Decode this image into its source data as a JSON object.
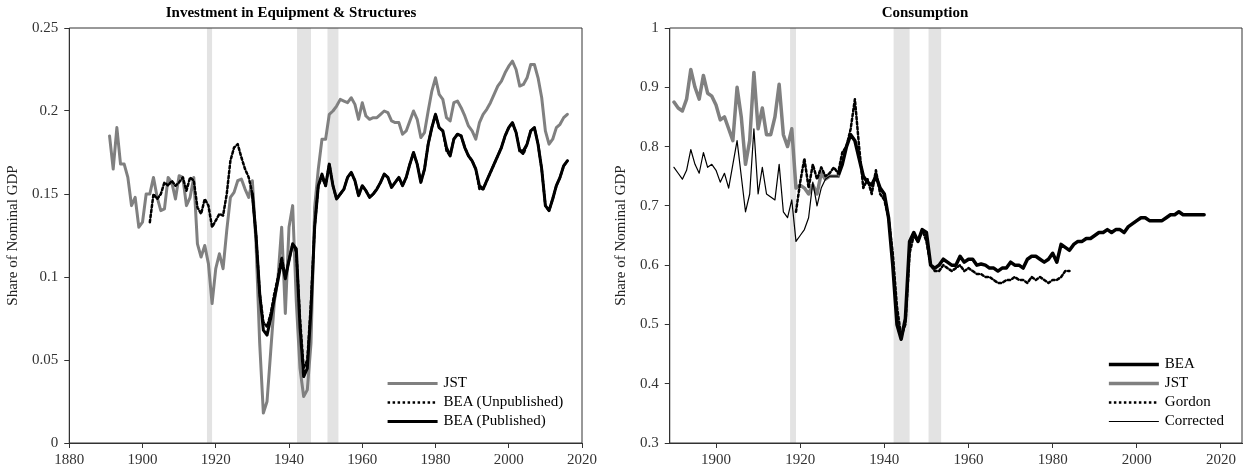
{
  "chart_data": [
    {
      "type": "line",
      "title": "Investment in Equipment & Structures",
      "ylabel": "Share of Nominal GDP",
      "x": [
        1891,
        1892,
        1893,
        1894,
        1895,
        1896,
        1897,
        1898,
        1899,
        1900,
        1901,
        1902,
        1903,
        1904,
        1905,
        1906,
        1907,
        1908,
        1909,
        1910,
        1911,
        1912,
        1913,
        1914,
        1915,
        1916,
        1917,
        1918,
        1919,
        1920,
        1921,
        1922,
        1923,
        1924,
        1925,
        1926,
        1927,
        1928,
        1929,
        1930,
        1931,
        1932,
        1933,
        1934,
        1935,
        1936,
        1937,
        1938,
        1939,
        1940,
        1941,
        1942,
        1943,
        1944,
        1945,
        1946,
        1947,
        1948,
        1949,
        1950,
        1951,
        1952,
        1953,
        1954,
        1955,
        1956,
        1957,
        1958,
        1959,
        1960,
        1961,
        1962,
        1963,
        1964,
        1965,
        1966,
        1967,
        1968,
        1969,
        1970,
        1971,
        1972,
        1973,
        1974,
        1975,
        1976,
        1977,
        1978,
        1979,
        1980,
        1981,
        1982,
        1983,
        1984,
        1985,
        1986,
        1987,
        1988,
        1989,
        1990,
        1991,
        1992,
        1993,
        1994,
        1995,
        1996,
        1997,
        1998,
        1999,
        2000,
        2001,
        2002,
        2003,
        2004,
        2005,
        2006,
        2007,
        2008,
        2009,
        2010,
        2011,
        2012,
        2013,
        2014,
        2015,
        2016
      ],
      "series": [
        {
          "name": "JST",
          "color": "#808080",
          "line_style": "solid",
          "values": [
            0.185,
            0.165,
            0.19,
            0.168,
            0.168,
            0.16,
            0.143,
            0.148,
            0.13,
            0.133,
            0.15,
            0.15,
            0.16,
            0.148,
            0.14,
            0.141,
            0.16,
            0.157,
            0.147,
            0.161,
            0.16,
            0.143,
            0.148,
            0.16,
            0.12,
            0.112,
            0.119,
            0.108,
            0.084,
            0.105,
            0.114,
            0.105,
            0.128,
            0.148,
            0.151,
            0.158,
            0.159,
            0.153,
            0.148,
            0.158,
            0.12,
            0.06,
            0.018,
            0.025,
            0.055,
            0.085,
            0.1,
            0.13,
            0.078,
            0.13,
            0.143,
            0.085,
            0.045,
            0.028,
            0.032,
            0.06,
            0.142,
            0.165,
            0.183,
            0.183,
            0.198,
            0.2,
            0.203,
            0.207,
            0.206,
            0.205,
            0.208,
            0.204,
            0.195,
            0.205,
            0.197,
            0.195,
            0.196,
            0.196,
            0.198,
            0.2,
            0.199,
            0.194,
            0.193,
            0.193,
            0.186,
            0.188,
            0.194,
            0.2,
            0.195,
            0.184,
            0.187,
            0.2,
            0.212,
            0.22,
            0.21,
            0.207,
            0.196,
            0.194,
            0.205,
            0.206,
            0.202,
            0.197,
            0.191,
            0.188,
            0.183,
            0.193,
            0.198,
            0.201,
            0.205,
            0.21,
            0.215,
            0.218,
            0.223,
            0.227,
            0.23,
            0.225,
            0.215,
            0.216,
            0.22,
            0.228,
            0.228,
            0.22,
            0.208,
            0.188,
            0.18,
            0.183,
            0.19,
            0.192,
            0.196,
            0.198
          ]
        },
        {
          "name": "BEA (Unpublished)",
          "color": "#000000",
          "line_style": "dotted",
          "values": [
            null,
            null,
            null,
            null,
            null,
            null,
            null,
            null,
            null,
            null,
            null,
            0.133,
            0.15,
            0.147,
            0.15,
            0.157,
            0.155,
            0.158,
            0.155,
            0.157,
            0.16,
            0.152,
            0.16,
            0.158,
            0.142,
            0.138,
            0.147,
            0.143,
            0.13,
            0.134,
            0.138,
            0.137,
            0.15,
            0.17,
            0.178,
            0.18,
            0.172,
            0.165,
            0.16,
            0.15,
            0.125,
            0.09,
            0.073,
            0.07,
            0.078,
            0.09,
            0.1,
            0.112,
            0.1,
            0.11,
            0.12,
            0.115,
            0.075,
            0.045,
            0.05,
            0.085,
            0.13,
            0.155,
            0.16,
            0.155,
            0.168,
            0.155,
            0.147,
            0.15,
            0.153,
            0.16,
            0.163,
            0.158,
            0.149,
            0.155,
            0.152,
            0.148,
            0.15,
            0.153,
            0.157,
            0.162,
            0.16,
            0.154,
            0.157,
            0.16,
            0.155,
            0.16,
            0.168,
            0.175,
            0.168,
            0.157,
            0.165,
            0.18,
            0.19,
            0.198,
            0.19,
            0.188,
            0.176,
            0.173,
            0.183,
            0.186,
            0.185,
            0.178,
            0.173,
            0.17,
            0.165,
            0.153,
            0.153,
            0.158,
            0.163,
            0.168,
            0.173,
            0.178,
            0.185,
            0.19,
            0.193,
            0.187,
            0.176,
            0.174,
            0.18,
            0.188,
            0.19,
            0.18,
            0.165,
            0.143,
            0.14,
            0.147,
            0.155,
            0.16,
            0.167,
            0.17
          ]
        },
        {
          "name": "BEA (Published)",
          "color": "#000000",
          "line_style": "solid",
          "values": [
            null,
            null,
            null,
            null,
            null,
            null,
            null,
            null,
            null,
            null,
            null,
            null,
            null,
            null,
            null,
            null,
            null,
            null,
            null,
            null,
            null,
            null,
            null,
            null,
            null,
            null,
            null,
            null,
            null,
            null,
            null,
            null,
            null,
            null,
            null,
            null,
            null,
            null,
            null,
            0.15,
            0.125,
            0.09,
            0.068,
            0.065,
            0.075,
            0.087,
            0.098,
            0.11,
            0.099,
            0.11,
            0.12,
            0.117,
            0.07,
            0.04,
            0.045,
            0.08,
            0.13,
            0.155,
            0.162,
            0.155,
            0.168,
            0.155,
            0.147,
            0.15,
            0.153,
            0.16,
            0.163,
            0.158,
            0.149,
            0.155,
            0.152,
            0.148,
            0.15,
            0.153,
            0.157,
            0.162,
            0.16,
            0.154,
            0.157,
            0.16,
            0.155,
            0.16,
            0.168,
            0.175,
            0.168,
            0.157,
            0.165,
            0.18,
            0.19,
            0.198,
            0.19,
            0.188,
            0.178,
            0.173,
            0.183,
            0.186,
            0.185,
            0.178,
            0.173,
            0.17,
            0.165,
            0.155,
            0.153,
            0.158,
            0.163,
            0.168,
            0.173,
            0.178,
            0.185,
            0.19,
            0.193,
            0.187,
            0.176,
            0.176,
            0.18,
            0.188,
            0.19,
            0.18,
            0.165,
            0.143,
            0.14,
            0.147,
            0.155,
            0.16,
            0.167,
            0.17
          ]
        }
      ],
      "xlim": [
        1880,
        2020
      ],
      "xticks": [
        1880,
        1900,
        1920,
        1940,
        1960,
        1980,
        2000,
        2020
      ],
      "ylim": [
        0,
        0.25
      ],
      "yticks": [
        0,
        0.05,
        0.1,
        0.15,
        0.2,
        0.25
      ],
      "bands": [
        {
          "axis": "x",
          "from": 1917.6,
          "to": 1919,
          "color": "#e3e3e3"
        },
        {
          "axis": "x",
          "from": 1942.2,
          "to": 1946,
          "color": "#e3e3e3"
        },
        {
          "axis": "x",
          "from": 1950.5,
          "to": 1953.5,
          "color": "#e3e3e3"
        }
      ],
      "grid": false,
      "legend": "bottom right"
    },
    {
      "type": "line",
      "title": "Consumption",
      "ylabel": "Share of Nominal GDP",
      "x": [
        1929,
        1930,
        1931,
        1932,
        1933,
        1934,
        1935,
        1936,
        1937,
        1938,
        1939,
        1940,
        1941,
        1942,
        1943,
        1944,
        1945,
        1946,
        1947,
        1948,
        1949,
        1950,
        1951,
        1952,
        1953,
        1954,
        1955,
        1956,
        1957,
        1958,
        1959,
        1960,
        1961,
        1962,
        1963,
        1964,
        1965,
        1966,
        1967,
        1968,
        1969,
        1970,
        1971,
        1972,
        1973,
        1974,
        1975,
        1976,
        1977,
        1978,
        1979,
        1980,
        1981,
        1982,
        1983,
        1984,
        1985,
        1986,
        1987,
        1988,
        1989,
        1990,
        1991,
        1992,
        1993,
        1994,
        1995,
        1996,
        1997,
        1998,
        1999,
        2000,
        2001,
        2002,
        2003,
        2004,
        2005,
        2006,
        2007,
        2008,
        2009,
        2010,
        2011,
        2012,
        2013,
        2014,
        2015,
        2016
      ],
      "series": [
        {
          "name": "BEA",
          "color": "#000000",
          "line_style": "solid",
          "values": [
            0.75,
            0.77,
            0.8,
            0.82,
            0.81,
            0.78,
            0.75,
            0.74,
            0.735,
            0.75,
            0.73,
            0.72,
            0.68,
            0.6,
            0.5,
            0.475,
            0.51,
            0.64,
            0.655,
            0.64,
            0.66,
            0.655,
            0.6,
            0.595,
            0.6,
            0.61,
            0.605,
            0.6,
            0.6,
            0.615,
            0.605,
            0.61,
            0.61,
            0.6,
            0.602,
            0.6,
            0.595,
            0.595,
            0.59,
            0.595,
            0.595,
            0.605,
            0.6,
            0.6,
            0.595,
            0.61,
            0.615,
            0.615,
            0.61,
            0.605,
            0.61,
            0.62,
            0.605,
            0.635,
            0.63,
            0.625,
            0.635,
            0.64,
            0.64,
            0.645,
            0.645,
            0.65,
            0.655,
            0.655,
            0.66,
            0.655,
            0.66,
            0.66,
            0.655,
            0.665,
            0.67,
            0.675,
            0.68,
            0.68,
            0.675,
            0.675,
            0.675,
            0.675,
            0.68,
            0.685,
            0.685,
            0.69,
            0.685,
            0.685,
            0.685,
            0.685,
            0.685,
            0.685
          ]
        },
        {
          "name": "JST",
          "color": "#808080",
          "line_style": "solid",
          "x": [
            1890,
            1891,
            1892,
            1893,
            1894,
            1895,
            1896,
            1897,
            1898,
            1899,
            1900,
            1901,
            1902,
            1903,
            1904,
            1905,
            1906,
            1907,
            1908,
            1909,
            1910,
            1911,
            1912,
            1913,
            1914,
            1915,
            1916,
            1917,
            1918,
            1919,
            1920,
            1921,
            1922,
            1923,
            1924,
            1925,
            1926,
            1927,
            1928,
            1929
          ],
          "values": [
            0.875,
            0.865,
            0.86,
            0.88,
            0.93,
            0.9,
            0.88,
            0.92,
            0.89,
            0.885,
            0.87,
            0.845,
            0.85,
            0.83,
            0.81,
            0.9,
            0.85,
            0.77,
            0.81,
            0.925,
            0.83,
            0.865,
            0.82,
            0.82,
            0.85,
            0.905,
            0.82,
            0.8,
            0.83,
            0.73,
            0.735,
            0.73,
            0.72,
            0.735,
            0.72,
            0.755,
            0.745,
            0.75,
            0.75,
            0.75
          ]
        },
        {
          "name": "Gordon",
          "color": "#000000",
          "line_style": "dotted",
          "x": [
            1919,
            1920,
            1921,
            1922,
            1923,
            1924,
            1925,
            1926,
            1927,
            1928,
            1929,
            1930,
            1931,
            1932,
            1933,
            1934,
            1935,
            1936,
            1937,
            1938,
            1939,
            1940,
            1941,
            1942,
            1943,
            1944,
            1945,
            1946,
            1947,
            1948,
            1949,
            1950,
            1951,
            1952,
            1953,
            1954,
            1955,
            1956,
            1957,
            1958,
            1959,
            1960,
            1961,
            1962,
            1963,
            1964,
            1965,
            1966,
            1967,
            1968,
            1969,
            1970,
            1971,
            1972,
            1973,
            1974,
            1975,
            1976,
            1977,
            1978,
            1979,
            1980,
            1981,
            1982,
            1983,
            1984
          ],
          "values": [
            0.69,
            0.74,
            0.78,
            0.73,
            0.77,
            0.745,
            0.765,
            0.75,
            0.755,
            0.765,
            0.755,
            0.79,
            0.8,
            0.83,
            0.88,
            0.8,
            0.73,
            0.745,
            0.72,
            0.76,
            0.72,
            0.71,
            0.68,
            0.62,
            0.53,
            0.48,
            0.5,
            0.62,
            0.65,
            0.64,
            0.66,
            0.64,
            0.6,
            0.59,
            0.59,
            0.6,
            0.595,
            0.59,
            0.595,
            0.6,
            0.59,
            0.595,
            0.59,
            0.585,
            0.585,
            0.58,
            0.58,
            0.575,
            0.57,
            0.57,
            0.575,
            0.575,
            0.58,
            0.575,
            0.575,
            0.57,
            0.58,
            0.575,
            0.58,
            0.575,
            0.57,
            0.575,
            0.575,
            0.58,
            0.59,
            0.59
          ]
        },
        {
          "name": "Corrected",
          "color": "#000000",
          "line_style": "solid",
          "x": [
            1890,
            1891,
            1892,
            1893,
            1894,
            1895,
            1896,
            1897,
            1898,
            1899,
            1900,
            1901,
            1902,
            1903,
            1904,
            1905,
            1906,
            1907,
            1908,
            1909,
            1910,
            1911,
            1912,
            1913,
            1914,
            1915,
            1916,
            1917,
            1918,
            1919,
            1920,
            1921,
            1922,
            1923,
            1924,
            1925,
            1926,
            1927,
            1928,
            1929
          ],
          "values": [
            0.765,
            0.755,
            0.745,
            0.76,
            0.795,
            0.77,
            0.755,
            0.79,
            0.765,
            0.77,
            0.76,
            0.74,
            0.755,
            0.73,
            0.77,
            0.81,
            0.75,
            0.69,
            0.72,
            0.83,
            0.72,
            0.765,
            0.72,
            0.715,
            0.71,
            0.77,
            0.69,
            0.68,
            0.71,
            0.64,
            0.65,
            0.66,
            0.68,
            0.74,
            0.7,
            0.73,
            0.745,
            0.75,
            0.75,
            0.75
          ]
        }
      ],
      "xlim": [
        1889,
        2025
      ],
      "xticks": [
        1900,
        1920,
        1940,
        1960,
        1980,
        2000,
        2020
      ],
      "ylim": [
        0.3,
        1
      ],
      "yticks": [
        0.3,
        0.4,
        0.5,
        0.6,
        0.7,
        0.8,
        0.9,
        1
      ],
      "bands": [
        {
          "axis": "x",
          "from": 1917.6,
          "to": 1919,
          "color": "#e3e3e3"
        },
        {
          "axis": "x",
          "from": 1942.2,
          "to": 1946,
          "color": "#e3e3e3"
        },
        {
          "axis": "x",
          "from": 1950.5,
          "to": 1953.5,
          "color": "#e3e3e3"
        }
      ],
      "grid": false,
      "legend": "bottom right"
    }
  ]
}
